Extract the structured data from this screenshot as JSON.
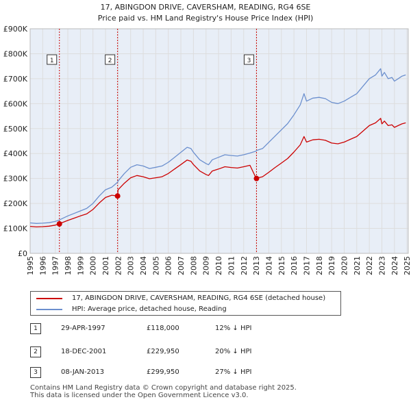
{
  "colors": {
    "property": "#cc0000",
    "hpi": "#6b8fce",
    "grid": "#dddddd",
    "plot_bg": "#e8eef7",
    "marker_line": "#cc0000"
  },
  "chart_data": {
    "type": "line",
    "title": "17, ABINGDON DRIVE, CAVERSHAM, READING, RG4 6SE",
    "subtitle": "Price paid vs. HM Land Registry's House Price Index (HPI)",
    "xlabel": "",
    "ylabel": "",
    "xlim": [
      1995,
      2025.1
    ],
    "ylim": [
      0,
      900000
    ],
    "grid": true,
    "y_ticks": [
      {
        "value": 0,
        "label": "£0"
      },
      {
        "value": 100000,
        "label": "£100K"
      },
      {
        "value": 200000,
        "label": "£200K"
      },
      {
        "value": 300000,
        "label": "£300K"
      },
      {
        "value": 400000,
        "label": "£400K"
      },
      {
        "value": 500000,
        "label": "£500K"
      },
      {
        "value": 600000,
        "label": "£600K"
      },
      {
        "value": 700000,
        "label": "£700K"
      },
      {
        "value": 800000,
        "label": "£800K"
      },
      {
        "value": 900000,
        "label": "£900K"
      }
    ],
    "x_ticks": [
      "1995",
      "1996",
      "1997",
      "1998",
      "1999",
      "2000",
      "2001",
      "2002",
      "2003",
      "2004",
      "2005",
      "2006",
      "2007",
      "2008",
      "2009",
      "2010",
      "2011",
      "2012",
      "2013",
      "2014",
      "2015",
      "2016",
      "2017",
      "2018",
      "2019",
      "2020",
      "2021",
      "2022",
      "2023",
      "2024",
      "2025"
    ],
    "series": [
      {
        "name": "HPI: Average price, detached house, Reading",
        "color": "#6b8fce",
        "x": [
          1995,
          1995.5,
          1996,
          1996.5,
          1997,
          1997.33,
          1997.5,
          1998,
          1998.5,
          1999,
          1999.5,
          2000,
          2000.5,
          2001,
          2001.5,
          2001.96,
          2002,
          2002.5,
          2003,
          2003.5,
          2004,
          2004.5,
          2005,
          2005.5,
          2006,
          2006.5,
          2007,
          2007.5,
          2007.8,
          2008,
          2008.5,
          2009,
          2009.2,
          2009.5,
          2010,
          2010.5,
          2011,
          2011.5,
          2012,
          2012.5,
          2013,
          2013.02,
          2013.5,
          2014,
          2014.5,
          2015,
          2015.5,
          2016,
          2016.5,
          2016.8,
          2017,
          2017.5,
          2018,
          2018.5,
          2019,
          2019.5,
          2020,
          2020.5,
          2021,
          2021.5,
          2022,
          2022.5,
          2022.9,
          2023,
          2023.2,
          2023.5,
          2023.8,
          2024,
          2024.3,
          2024.6,
          2024.9
        ],
        "values": [
          122000,
          120000,
          121000,
          123000,
          128000,
          134000,
          138000,
          150000,
          160000,
          170000,
          180000,
          200000,
          230000,
          255000,
          265000,
          285000,
          290000,
          320000,
          345000,
          355000,
          350000,
          340000,
          345000,
          350000,
          365000,
          385000,
          405000,
          425000,
          420000,
          405000,
          375000,
          360000,
          355000,
          375000,
          385000,
          395000,
          392000,
          390000,
          395000,
          402000,
          410000,
          412000,
          420000,
          445000,
          470000,
          495000,
          520000,
          555000,
          595000,
          640000,
          610000,
          622000,
          625000,
          620000,
          605000,
          600000,
          610000,
          625000,
          640000,
          670000,
          700000,
          715000,
          740000,
          710000,
          725000,
          700000,
          705000,
          690000,
          700000,
          710000,
          715000
        ]
      },
      {
        "name": "17, ABINGDON DRIVE, CAVERSHAM, READING, RG4 6SE (detached house)",
        "color": "#cc0000",
        "x": [
          1995,
          1995.5,
          1996,
          1996.5,
          1997,
          1997.33,
          1997.5,
          1998,
          1998.5,
          1999,
          1999.5,
          2000,
          2000.5,
          2001,
          2001.5,
          2001.96,
          2002,
          2002.5,
          2003,
          2003.5,
          2004,
          2004.5,
          2005,
          2005.5,
          2006,
          2006.5,
          2007,
          2007.5,
          2007.8,
          2008,
          2008.5,
          2009,
          2009.2,
          2009.5,
          2010,
          2010.5,
          2011,
          2011.5,
          2012,
          2012.5,
          2013,
          2013.02,
          2013.5,
          2014,
          2014.5,
          2015,
          2015.5,
          2016,
          2016.5,
          2016.8,
          2017,
          2017.5,
          2018,
          2018.5,
          2019,
          2019.5,
          2020,
          2020.5,
          2021,
          2021.5,
          2022,
          2022.5,
          2022.9,
          2023,
          2023.2,
          2023.5,
          2023.8,
          2024,
          2024.3,
          2024.6,
          2024.9
        ],
        "values": [
          108000,
          106000,
          107000,
          109000,
          113000,
          118000,
          122000,
          132000,
          141000,
          150000,
          158000,
          176000,
          202000,
          224000,
          233000,
          229950,
          255000,
          281000,
          303000,
          312000,
          307000,
          299000,
          303000,
          307000,
          320000,
          338000,
          356000,
          374000,
          369000,
          356000,
          330000,
          316000,
          312000,
          330000,
          338000,
          347000,
          344000,
          342000,
          347000,
          353000,
          299950,
          301000,
          307000,
          325000,
          344000,
          362000,
          380000,
          406000,
          435000,
          468000,
          446000,
          455000,
          457000,
          453000,
          442000,
          439000,
          446000,
          457000,
          468000,
          490000,
          512000,
          523000,
          541000,
          519000,
          530000,
          512000,
          515000,
          505000,
          512000,
          519000,
          523000
        ]
      }
    ],
    "sale_markers": [
      {
        "label": "1",
        "x": 1997.33,
        "y": 118000
      },
      {
        "label": "2",
        "x": 2001.96,
        "y": 229950
      },
      {
        "label": "3",
        "x": 2013.02,
        "y": 299950
      }
    ],
    "legend": [
      "17, ABINGDON DRIVE, CAVERSHAM, READING, RG4 6SE (detached house)",
      "HPI: Average price, detached house, Reading"
    ]
  },
  "sales_table": [
    {
      "num": "1",
      "date": "29-APR-1997",
      "price": "£118,000",
      "hpi": "12% ↓ HPI"
    },
    {
      "num": "2",
      "date": "18-DEC-2001",
      "price": "£229,950",
      "hpi": "20% ↓ HPI"
    },
    {
      "num": "3",
      "date": "08-JAN-2013",
      "price": "£299,950",
      "hpi": "27% ↓ HPI"
    }
  ],
  "footer": {
    "line1": "Contains HM Land Registry data © Crown copyright and database right 2025.",
    "line2": "This data is licensed under the Open Government Licence v3.0."
  }
}
